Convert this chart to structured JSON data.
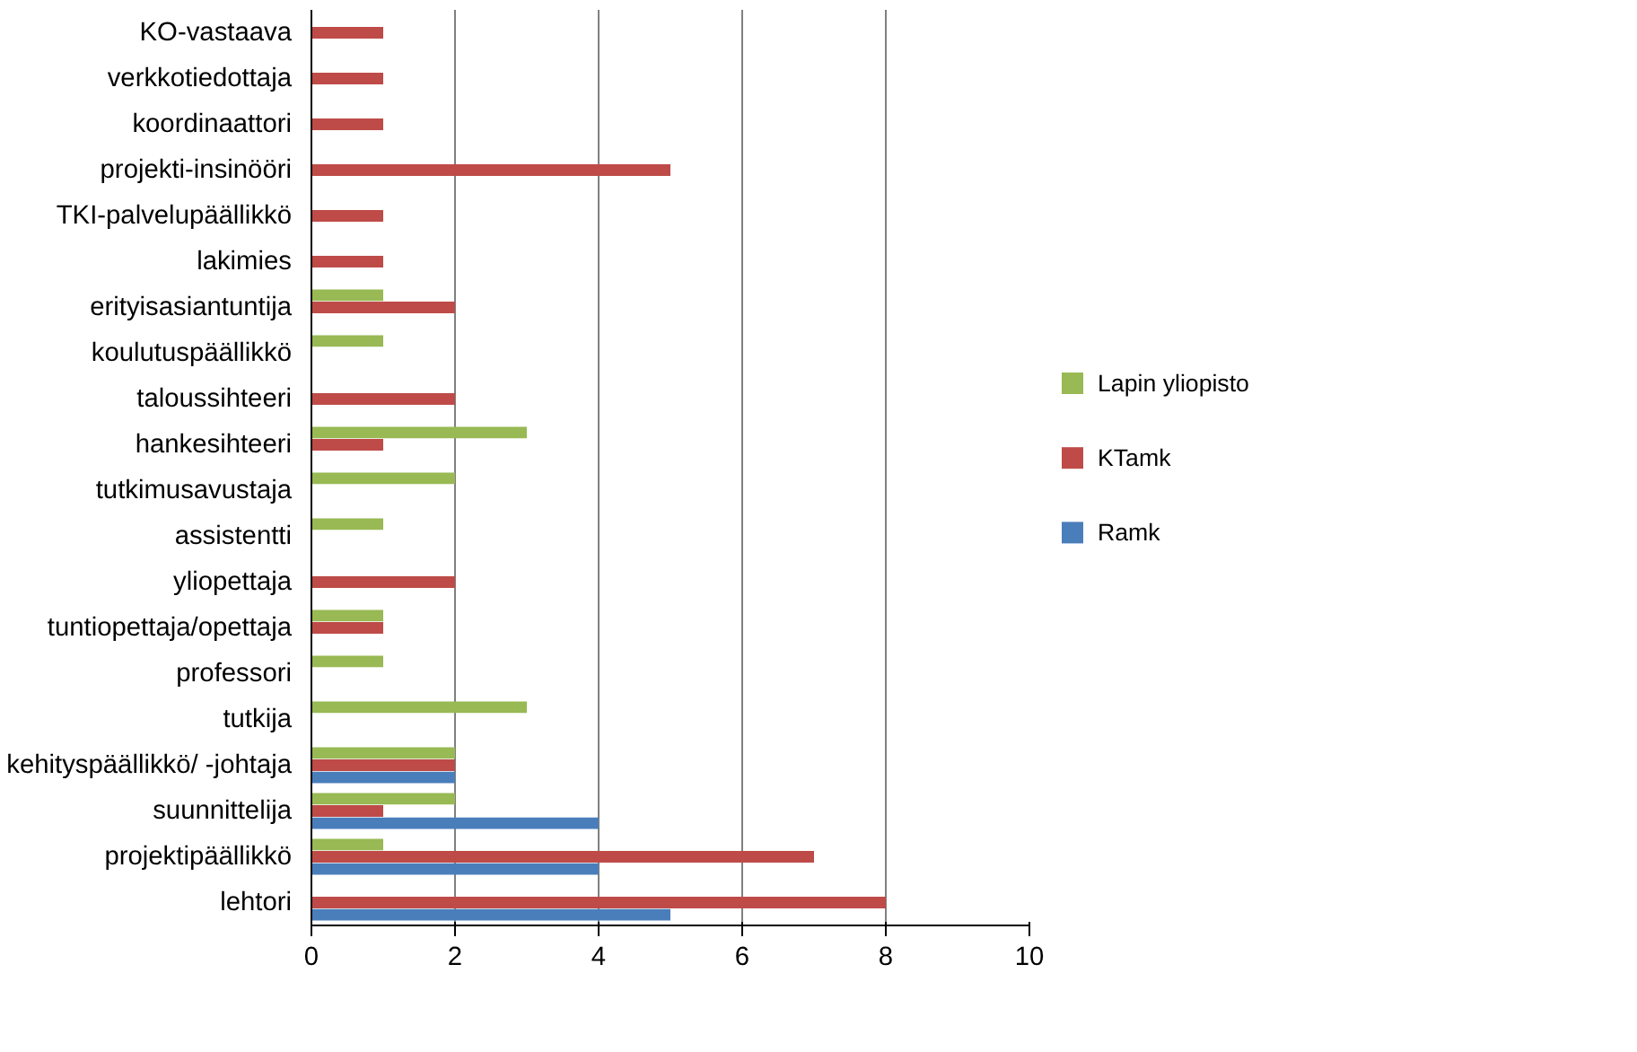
{
  "chart_data": {
    "type": "bar",
    "orientation": "horizontal",
    "categories": [
      "KO-vastaava",
      "verkkotiedottaja",
      "koordinaattori",
      "projekti-insinööri",
      "TKI-palvelupäällikkö",
      "lakimies",
      "erityisasiantuntija",
      "koulutuspäällikkö",
      "taloussihteeri",
      "hankesihteeri",
      "tutkimusavustaja",
      "assistentti",
      "yliopettaja",
      "tuntiopettaja/opettaja",
      "professori",
      "tutkija",
      "kehityspäällikkö/ -johtaja",
      "suunnittelija",
      "projektipäällikkö",
      "lehtori"
    ],
    "series": [
      {
        "name": "Lapin yliopisto",
        "color": "#98b954",
        "values": [
          null,
          null,
          null,
          null,
          null,
          null,
          1,
          1,
          null,
          3,
          2,
          1,
          null,
          1,
          1,
          3,
          2,
          2,
          1,
          null
        ]
      },
      {
        "name": "KTamk",
        "color": "#be4b48",
        "values": [
          1,
          1,
          1,
          5,
          1,
          1,
          2,
          null,
          2,
          1,
          null,
          null,
          2,
          1,
          null,
          null,
          2,
          1,
          7,
          8
        ]
      },
      {
        "name": "Ramk",
        "color": "#4a7ebb",
        "values": [
          null,
          null,
          null,
          null,
          null,
          null,
          null,
          null,
          null,
          null,
          null,
          null,
          null,
          null,
          null,
          null,
          2,
          4,
          4,
          5
        ]
      }
    ],
    "xlim": [
      0,
      10
    ],
    "xticks": [
      0,
      2,
      4,
      6,
      8,
      10
    ],
    "grid": "x",
    "legend": "right"
  }
}
